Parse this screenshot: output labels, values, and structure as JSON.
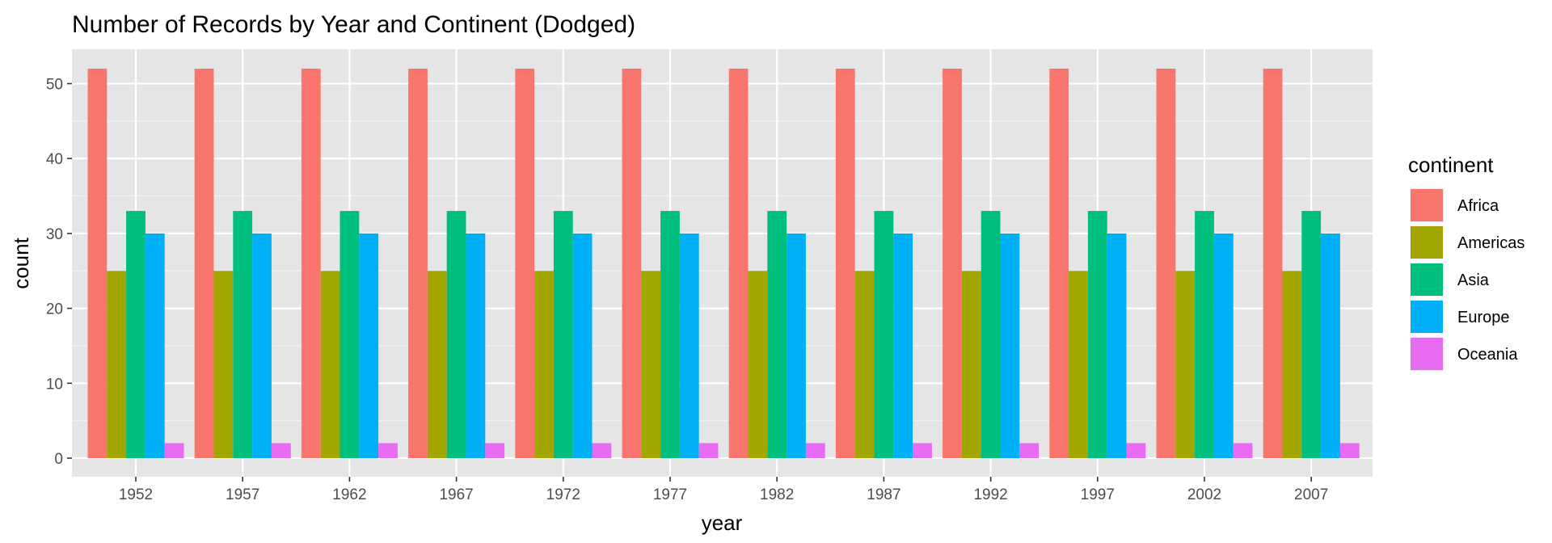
{
  "chart_data": {
    "type": "bar",
    "title": "Number of Records by Year and Continent (Dodged)",
    "xlabel": "year",
    "ylabel": "count",
    "categories": [
      "1952",
      "1957",
      "1962",
      "1967",
      "1972",
      "1977",
      "1982",
      "1987",
      "1992",
      "1997",
      "2002",
      "2007"
    ],
    "ylim": [
      0,
      52
    ],
    "yticks": [
      0,
      10,
      20,
      30,
      40,
      50
    ],
    "grid": true,
    "background": "#e5e5e5",
    "legend": {
      "title": "continent",
      "position": "right"
    },
    "series": [
      {
        "name": "Africa",
        "color": "#F8766D",
        "values": [
          52,
          52,
          52,
          52,
          52,
          52,
          52,
          52,
          52,
          52,
          52,
          52
        ]
      },
      {
        "name": "Americas",
        "color": "#A3A500",
        "values": [
          25,
          25,
          25,
          25,
          25,
          25,
          25,
          25,
          25,
          25,
          25,
          25
        ]
      },
      {
        "name": "Asia",
        "color": "#00BF7D",
        "values": [
          33,
          33,
          33,
          33,
          33,
          33,
          33,
          33,
          33,
          33,
          33,
          33
        ]
      },
      {
        "name": "Europe",
        "color": "#00B0F6",
        "values": [
          30,
          30,
          30,
          30,
          30,
          30,
          30,
          30,
          30,
          30,
          30,
          30
        ]
      },
      {
        "name": "Oceania",
        "color": "#E76BF3",
        "values": [
          2,
          2,
          2,
          2,
          2,
          2,
          2,
          2,
          2,
          2,
          2,
          2
        ]
      }
    ]
  }
}
